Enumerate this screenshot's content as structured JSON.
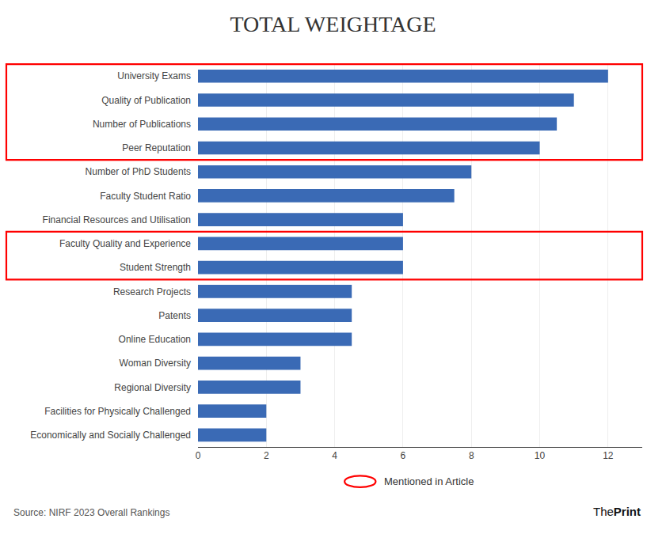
{
  "chart_data": {
    "type": "bar",
    "orientation": "horizontal",
    "title": "TOTAL WEIGHTAGE",
    "categories": [
      "University Exams",
      "Quality of Publication",
      "Number of Publications",
      "Peer Reputation",
      "Number of PhD Students",
      "Faculty Student Ratio",
      "Financial Resources and Utilisation",
      "Faculty Quality and Experience",
      "Student Strength",
      "Research Projects",
      "Patents",
      "Online Education",
      "Woman Diversity",
      "Regional Diversity",
      "Facilities for Physically Challenged",
      "Economically and Socially Challenged"
    ],
    "values": [
      12,
      11,
      10.5,
      10,
      8,
      7.5,
      6,
      6,
      6,
      4.5,
      4.5,
      4.5,
      3,
      3,
      2,
      2
    ],
    "color": "#3a6ab5",
    "xlim": [
      0,
      13
    ],
    "xticks": [
      0,
      2,
      4,
      6,
      8,
      10,
      12
    ],
    "grid": true,
    "annotations": [
      {
        "text": "Mentioned in Article",
        "color": "red",
        "groups": [
          [
            "University Exams",
            "Peer Reputation"
          ],
          [
            "Faculty Quality and Experience",
            "Student Strength"
          ]
        ]
      },
      {
        "text": "Source: NIRF 2023 Overall Rankings"
      },
      {
        "text": [
          "The",
          "Print"
        ]
      }
    ]
  }
}
